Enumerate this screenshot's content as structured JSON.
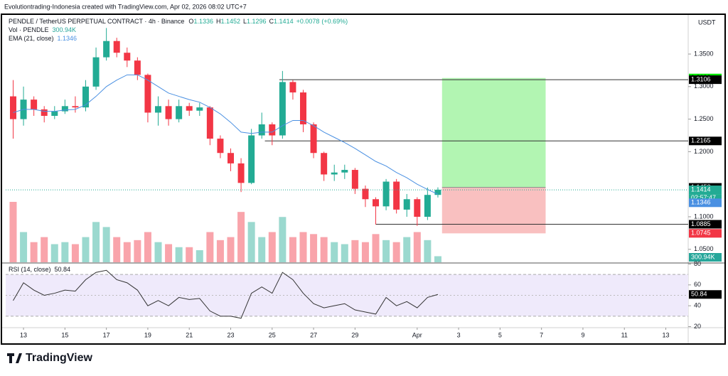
{
  "chart_data": {
    "type": "candlestick",
    "attribution": "Evolutiontrading-Indonesia created with TradingView.com, Apr 02, 2026 08:02 UTC+7",
    "title": "PENDLE / TetherUS PERPETUAL CONTRACT · 4h · Binance",
    "currency": "USDT",
    "brand": "TradingView",
    "colors": {
      "up": "#22ab94",
      "down": "#f23645"
    },
    "x": [
      12.5,
      13,
      13.5,
      14,
      14.5,
      15,
      15.5,
      16,
      16.5,
      17,
      17.5,
      18,
      18.5,
      19,
      19.5,
      20,
      20.5,
      21,
      21.5,
      22,
      22.5,
      23,
      23.5,
      24,
      24.5,
      25,
      25.5,
      26,
      26.5,
      27,
      27.5,
      28,
      28.5,
      29,
      29.5,
      30,
      30.5,
      31,
      31.5,
      32,
      32.5,
      33
    ],
    "candles": {
      "open": [
        1.285,
        1.25,
        1.28,
        1.265,
        1.255,
        1.262,
        1.27,
        1.268,
        1.3,
        1.345,
        1.37,
        1.352,
        1.34,
        1.318,
        1.26,
        1.27,
        1.25,
        1.27,
        1.263,
        1.268,
        1.22,
        1.198,
        1.182,
        1.152,
        1.225,
        1.242,
        1.225,
        1.307,
        1.291,
        1.242,
        1.198,
        1.165,
        1.168,
        1.172,
        1.143,
        1.127,
        1.116,
        1.154,
        1.111,
        1.127,
        1.1,
        1.1336
      ],
      "high": [
        1.31,
        1.3,
        1.285,
        1.27,
        1.27,
        1.28,
        1.285,
        1.31,
        1.36,
        1.39,
        1.375,
        1.36,
        1.345,
        1.32,
        1.285,
        1.28,
        1.28,
        1.275,
        1.275,
        1.27,
        1.225,
        1.205,
        1.19,
        1.235,
        1.26,
        1.245,
        1.324,
        1.31,
        1.295,
        1.245,
        1.2,
        1.18,
        1.18,
        1.175,
        1.148,
        1.13,
        1.158,
        1.158,
        1.135,
        1.13,
        1.145,
        1.1452
      ],
      "low": [
        1.22,
        1.24,
        1.255,
        1.245,
        1.25,
        1.258,
        1.26,
        1.262,
        1.295,
        1.34,
        1.345,
        1.33,
        1.31,
        1.245,
        1.24,
        1.24,
        1.245,
        1.255,
        1.255,
        1.21,
        1.19,
        1.17,
        1.138,
        1.15,
        1.22,
        1.21,
        1.22,
        1.28,
        1.23,
        1.19,
        1.155,
        1.155,
        1.158,
        1.135,
        1.115,
        1.088,
        1.11,
        1.105,
        1.1,
        1.086,
        1.095,
        1.1296
      ],
      "close": [
        1.25,
        1.28,
        1.265,
        1.255,
        1.262,
        1.27,
        1.268,
        1.3,
        1.345,
        1.37,
        1.352,
        1.34,
        1.318,
        1.26,
        1.27,
        1.25,
        1.27,
        1.263,
        1.268,
        1.22,
        1.198,
        1.182,
        1.152,
        1.225,
        1.242,
        1.225,
        1.307,
        1.291,
        1.242,
        1.198,
        1.165,
        1.168,
        1.172,
        1.143,
        1.127,
        1.116,
        1.154,
        1.111,
        1.127,
        1.1,
        1.1336,
        1.1414
      ]
    },
    "ohlc_labels": [
      "O",
      "H",
      "L",
      "C"
    ],
    "change": {
      "value": 0.0078,
      "label": "+0.0078"
    },
    "change_pct": {
      "value": 0.69,
      "label": "(+0.69%)"
    },
    "countdown": "02:57:47",
    "xlim": [
      12.14,
      45.08
    ],
    "xticks": [
      13,
      15,
      17,
      19,
      21,
      23,
      25,
      27,
      29,
      {
        "value": 32,
        "label": "Apr"
      },
      {
        "value": 34,
        "label": "3"
      },
      {
        "value": 36,
        "label": "5"
      },
      {
        "value": 38,
        "label": "7"
      },
      {
        "value": 40,
        "label": "9"
      },
      {
        "value": 42,
        "label": "11"
      },
      {
        "value": 44,
        "label": "13"
      }
    ],
    "ylim": [
      1.029,
      1.409
    ],
    "yticks": [
      {
        "value": 1.35,
        "label": "1.3500"
      },
      {
        "value": 1.3,
        "label": "1.3000"
      },
      {
        "value": 1.25,
        "label": "1.2500"
      },
      {
        "value": 1.2,
        "label": "1.2000"
      },
      {
        "value": 1.1,
        "label": "1.1000"
      },
      {
        "value": 1.05,
        "label": "1.0500"
      }
    ],
    "ema": {
      "name": "EMA (21, close)",
      "color": "#4a90e2",
      "values": [
        1.26,
        1.265,
        1.265,
        1.262,
        1.262,
        1.264,
        1.265,
        1.272,
        1.285,
        1.3,
        1.31,
        1.318,
        1.318,
        1.31,
        1.3,
        1.29,
        1.285,
        1.28,
        1.276,
        1.268,
        1.258,
        1.245,
        1.23,
        1.228,
        1.23,
        1.23,
        1.24,
        1.248,
        1.248,
        1.24,
        1.23,
        1.222,
        1.214,
        1.205,
        1.195,
        1.185,
        1.178,
        1.168,
        1.16,
        1.15,
        1.142,
        1.1346
      ]
    },
    "volume": {
      "name": "Vol · PENDLE",
      "last_label": "300.94K",
      "color": "#26a69a",
      "values": [
        3000000,
        1500000,
        1000000,
        1250000,
        900000,
        1000000,
        900000,
        1250000,
        2000000,
        1750000,
        1250000,
        1000000,
        1100000,
        1500000,
        1000000,
        900000,
        750000,
        750000,
        600000,
        1500000,
        1100000,
        1250000,
        2500000,
        2000000,
        1250000,
        1500000,
        2250000,
        1250000,
        1500000,
        1400000,
        1250000,
        1000000,
        900000,
        1100000,
        1000000,
        1400000,
        1100000,
        1000000,
        1250000,
        1500000,
        1100000,
        300940
      ]
    },
    "rsi": {
      "name": "RSI (14, close)",
      "color": "#333333",
      "ylim": [
        19,
        81
      ],
      "yticks": [
        80,
        60,
        40,
        20
      ],
      "band": [
        30,
        70
      ],
      "mid": 50,
      "values": [
        45,
        62,
        55,
        50,
        52,
        55,
        54,
        65,
        72,
        74,
        65,
        62,
        55,
        40,
        45,
        40,
        48,
        46,
        47,
        35,
        30,
        30,
        28,
        52,
        58,
        52,
        72,
        65,
        52,
        42,
        38,
        40,
        42,
        36,
        34,
        32,
        48,
        40,
        44,
        38,
        48,
        50.84
      ]
    },
    "levels": [
      {
        "value": 1.3106,
        "from": 25.35
      },
      {
        "value": 1.2165,
        "from": 24.65
      },
      {
        "value": 1.0885,
        "from": 30.0
      }
    ],
    "position": {
      "entry": 1.1452,
      "target": 1.3132,
      "stop": 1.0745,
      "from": 33.2,
      "to": 38.2
    },
    "price_markers": [
      {
        "value": 1.3132,
        "color": "#00e600",
        "text_color": "#000000"
      },
      {
        "value": 1.3106,
        "color": "#000000",
        "text_color": "#ffffff"
      },
      {
        "value": 1.2165,
        "color": "#000000",
        "text_color": "#ffffff"
      },
      {
        "value": 1.1452,
        "color": "#000000",
        "text_color": "#ffffff"
      },
      {
        "value": 1.0885,
        "color": "#000000",
        "text_color": "#ffffff"
      },
      {
        "value": 1.0745,
        "color": "#f23645",
        "text_color": "#ffffff"
      }
    ]
  }
}
